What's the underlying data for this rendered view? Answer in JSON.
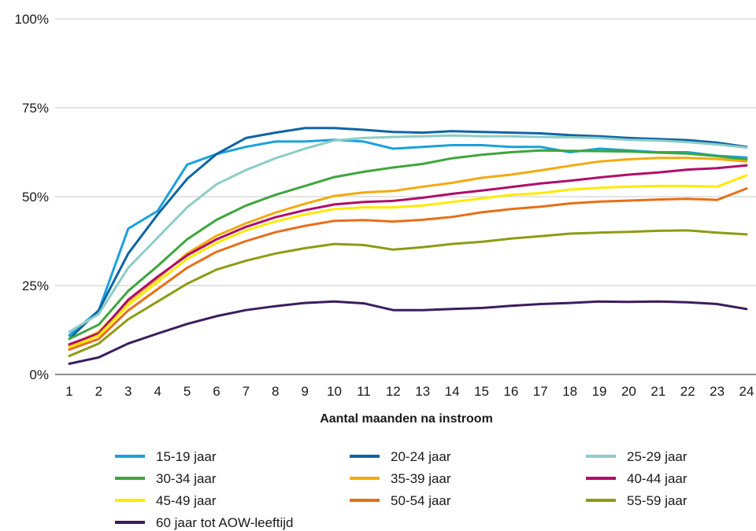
{
  "chart_data": {
    "type": "line",
    "xlabel": "Aantal maanden na instroom",
    "ylabel": "",
    "x": [
      1,
      2,
      3,
      4,
      5,
      6,
      7,
      8,
      9,
      10,
      11,
      12,
      13,
      14,
      15,
      16,
      17,
      18,
      19,
      20,
      21,
      22,
      23,
      24
    ],
    "ylim": [
      0,
      100
    ],
    "yticks": [
      "0%",
      "25%",
      "50%",
      "75%",
      "100%"
    ],
    "grid": "horizontal",
    "legend_position": "bottom",
    "series": [
      {
        "name": "15-19 jaar",
        "color": "#1ba1dc",
        "values": [
          11,
          18,
          41,
          46,
          59,
          62,
          64,
          65.5,
          65.5,
          66,
          65.5,
          63.5,
          64,
          64.5,
          64.5,
          64,
          64,
          62.5,
          63.5,
          63,
          62.5,
          62.5,
          61.5,
          61
        ]
      },
      {
        "name": "20-24 jaar",
        "color": "#0e64a4",
        "values": [
          10,
          18,
          34,
          45,
          55,
          62,
          66.5,
          68,
          69.3,
          69.3,
          68.8,
          68.2,
          68,
          68.4,
          68.2,
          68,
          67.8,
          67.3,
          67,
          66.5,
          66.2,
          65.9,
          65.2,
          64
        ]
      },
      {
        "name": "25-29 jaar",
        "color": "#8ecdc4",
        "values": [
          12,
          17,
          30,
          38.5,
          47,
          53.5,
          57.5,
          60.8,
          63.5,
          65.8,
          66.5,
          66.8,
          67,
          67.2,
          67,
          67,
          66.8,
          66.7,
          66.5,
          66,
          65.8,
          65.3,
          64.7,
          63.8
        ]
      },
      {
        "name": "30-34 jaar",
        "color": "#3fa53d",
        "values": [
          10,
          14,
          23.5,
          30.5,
          38,
          43.5,
          47.5,
          50.5,
          53,
          55.5,
          57,
          58.2,
          59.2,
          60.8,
          61.8,
          62.5,
          63,
          62.9,
          62.8,
          62.7,
          62.4,
          62.1,
          61.4,
          60.4
        ]
      },
      {
        "name": "35-39 jaar",
        "color": "#f4aa0e",
        "values": [
          8,
          12,
          20.5,
          27,
          34,
          39,
          42.5,
          45.5,
          48,
          50.2,
          51.2,
          51.6,
          52.8,
          53.9,
          55.3,
          56.2,
          57.4,
          58.7,
          59.9,
          60.5,
          60.9,
          60.9,
          60.6,
          59.9
        ]
      },
      {
        "name": "40-44 jaar",
        "color": "#b00d68",
        "values": [
          8.5,
          11.5,
          21,
          27.5,
          33.5,
          38,
          41.5,
          44.2,
          46.2,
          47.8,
          48.5,
          48.8,
          49.7,
          50.8,
          51.7,
          52.7,
          53.7,
          54.5,
          55.4,
          56.2,
          56.8,
          57.6,
          58,
          58.8
        ]
      },
      {
        "name": "45-49 jaar",
        "color": "#ffea00",
        "values": [
          7.5,
          11,
          19.5,
          26,
          32.5,
          37,
          40.5,
          43,
          45,
          46.5,
          47,
          47,
          47.5,
          48.5,
          49.5,
          50.5,
          51,
          52,
          52.5,
          52.8,
          53,
          53,
          52.8,
          56
        ]
      },
      {
        "name": "50-54 jaar",
        "color": "#e86e18",
        "values": [
          7,
          10,
          18,
          24,
          30,
          34.5,
          37.5,
          40,
          41.8,
          43.2,
          43.4,
          43,
          43.5,
          44.3,
          45.6,
          46.5,
          47.2,
          48.1,
          48.6,
          48.9,
          49.2,
          49.4,
          49.1,
          52.3
        ]
      },
      {
        "name": "55-59 jaar",
        "color": "#8d9c14",
        "values": [
          5.2,
          8.7,
          15.5,
          20.5,
          25.5,
          29.5,
          32,
          34,
          35.5,
          36.7,
          36.4,
          35.1,
          35.8,
          36.7,
          37.3,
          38.2,
          38.9,
          39.6,
          39.9,
          40.1,
          40.4,
          40.5,
          39.9,
          39.4
        ]
      },
      {
        "name": "60 jaar tot AOW-leeftijd",
        "color": "#3b1d5e",
        "values": [
          3,
          4.8,
          8.7,
          11.5,
          14.2,
          16.4,
          18.1,
          19.2,
          20.1,
          20.5,
          20,
          18.1,
          18.1,
          18.4,
          18.7,
          19.3,
          19.8,
          20.1,
          20.5,
          20.4,
          20.5,
          20.3,
          19.8,
          18.4
        ]
      }
    ]
  }
}
